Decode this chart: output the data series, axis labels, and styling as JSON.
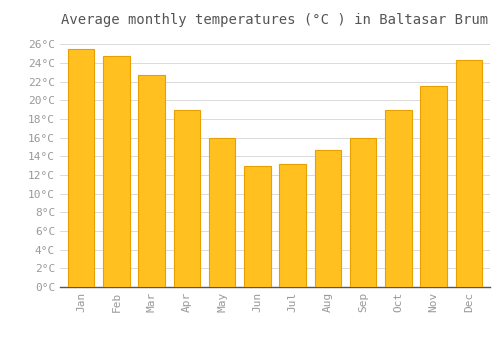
{
  "title": "Average monthly temperatures (°C ) in Baltasar Brum",
  "months": [
    "Jan",
    "Feb",
    "Mar",
    "Apr",
    "May",
    "Jun",
    "Jul",
    "Aug",
    "Sep",
    "Oct",
    "Nov",
    "Dec"
  ],
  "values": [
    25.5,
    24.8,
    22.7,
    19.0,
    16.0,
    13.0,
    13.2,
    14.7,
    16.0,
    19.0,
    21.5,
    24.3
  ],
  "bar_color": "#FFC020",
  "bar_edge_color": "#E8A000",
  "background_color": "#FFFFFF",
  "grid_color": "#CCCCCC",
  "ylim": [
    0,
    27
  ],
  "ytick_step": 2,
  "title_fontsize": 10,
  "tick_fontsize": 8,
  "font_color": "#999999",
  "title_color": "#555555"
}
